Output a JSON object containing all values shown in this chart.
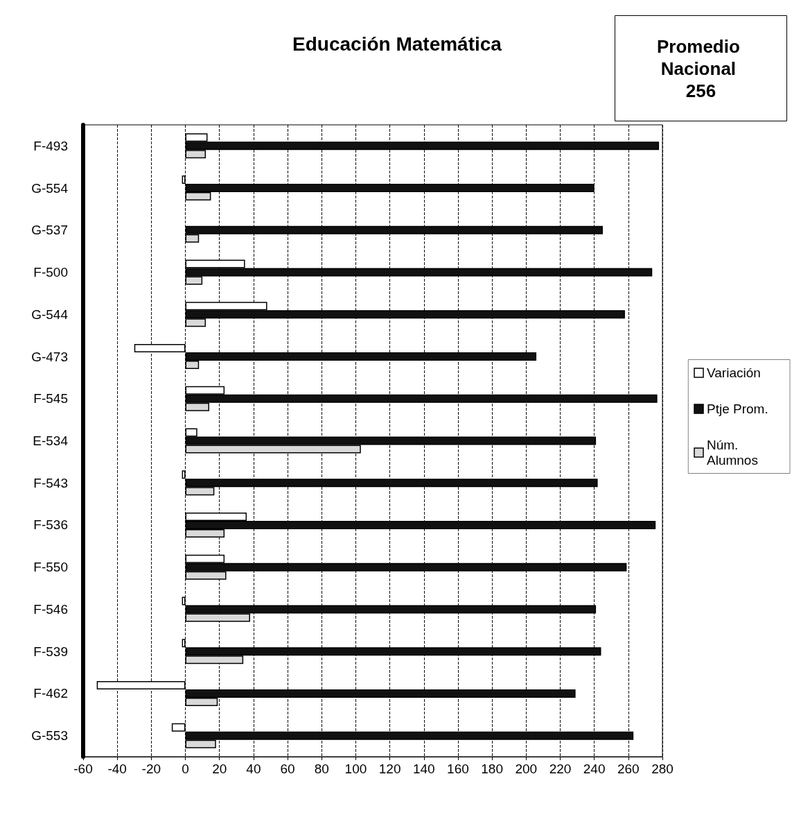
{
  "chart_data": {
    "type": "bar",
    "orientation": "horizontal",
    "title": "Educación Matemática",
    "annotations": [
      "Promedio Nacional 256"
    ],
    "categories": [
      "F-493",
      "G-554",
      "G-537",
      "F-500",
      "G-544",
      "G-473",
      "F-545",
      "E-534",
      "F-543",
      "F-536",
      "F-550",
      "F-546",
      "F-539",
      "F-462",
      "G-553"
    ],
    "series": [
      {
        "name": "Variación",
        "color": "#ffffff",
        "values": [
          13,
          -2,
          null,
          35,
          48,
          -30,
          23,
          7,
          -2,
          36,
          23,
          -2,
          -2,
          -52,
          -8
        ]
      },
      {
        "name": "Ptje Prom.",
        "color": "#111111",
        "values": [
          278,
          240,
          245,
          274,
          258,
          206,
          277,
          241,
          242,
          276,
          259,
          241,
          244,
          229,
          263
        ]
      },
      {
        "name": "Núm. Alumnos",
        "color": "#d9d9d9",
        "values": [
          12,
          15,
          8,
          10,
          12,
          8,
          14,
          103,
          17,
          23,
          24,
          38,
          34,
          19,
          18
        ]
      }
    ],
    "xlim": [
      -60,
      280
    ],
    "xticks": [
      -60,
      -40,
      -20,
      0,
      20,
      40,
      60,
      80,
      100,
      120,
      140,
      160,
      180,
      200,
      220,
      240,
      260,
      280
    ],
    "grid": "x",
    "legend": "right"
  }
}
